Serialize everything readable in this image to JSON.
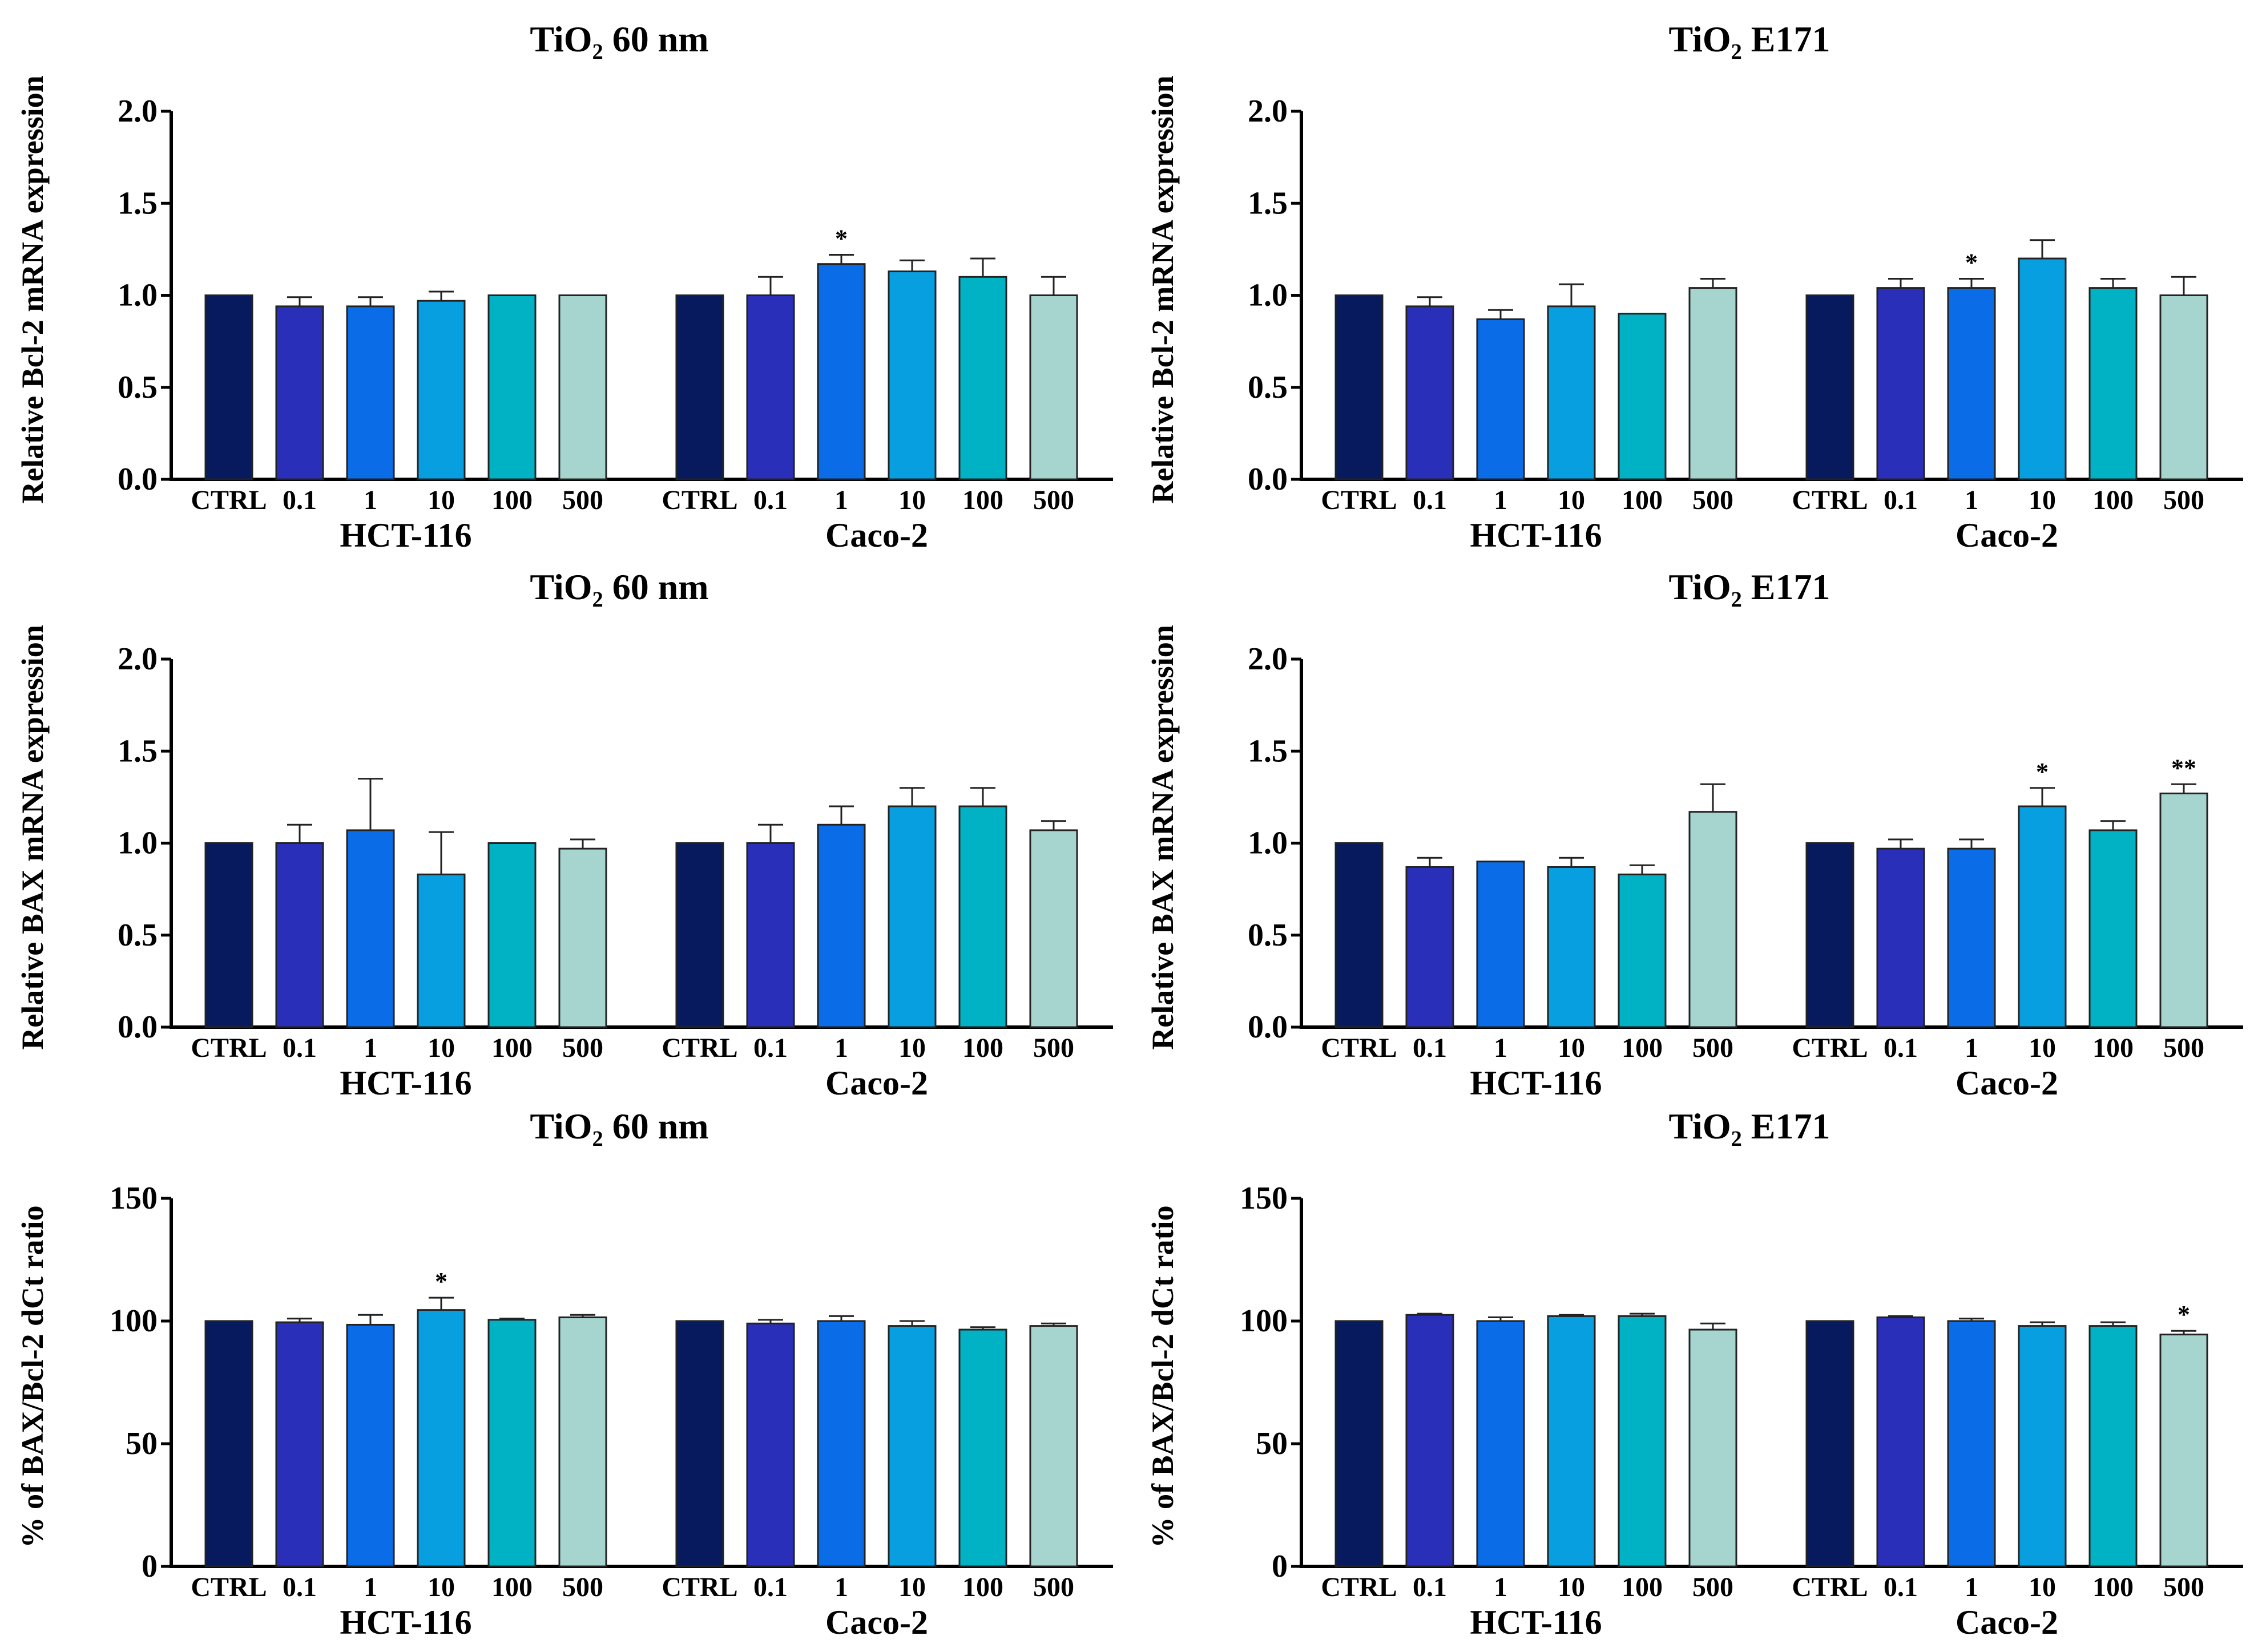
{
  "categories": [
    "CTRL",
    "0.1",
    "1",
    "10",
    "100",
    "500"
  ],
  "groups": [
    "HCT-116",
    "Caco-2"
  ],
  "colors": [
    "#081a5e",
    "#2a2fba",
    "#0b6ce8",
    "#089fe0",
    "#00b2c4",
    "#a6d5d0"
  ],
  "chart_data": [
    {
      "type": "bar",
      "title": "TiO₂ 60 nm",
      "ylabel": "Relative Bcl-2 mRNA expression",
      "ylim": [
        0,
        2.0
      ],
      "yticks": [
        "0.0",
        "0.5",
        "1.0",
        "1.5",
        "2.0"
      ],
      "series": [
        {
          "name": "HCT-116",
          "values": [
            1.0,
            0.94,
            0.94,
            0.97,
            1.0,
            1.0
          ],
          "errors": [
            0,
            0.05,
            0.05,
            0.05,
            0,
            0
          ],
          "sig": [
            "",
            "",
            "",
            "",
            "",
            ""
          ]
        },
        {
          "name": "Caco-2",
          "values": [
            1.0,
            1.0,
            1.17,
            1.13,
            1.1,
            1.0
          ],
          "errors": [
            0,
            0.1,
            0.05,
            0.06,
            0.1,
            0.1
          ],
          "sig": [
            "",
            "",
            "*",
            "",
            "",
            ""
          ]
        }
      ]
    },
    {
      "type": "bar",
      "title": "TiO₂ E171",
      "ylabel": "Relative Bcl-2 mRNA expression",
      "ylim": [
        0,
        2.0
      ],
      "yticks": [
        "0.0",
        "0.5",
        "1.0",
        "1.5",
        "2.0"
      ],
      "series": [
        {
          "name": "HCT-116",
          "values": [
            1.0,
            0.94,
            0.87,
            0.94,
            0.9,
            1.04
          ],
          "errors": [
            0,
            0.05,
            0.05,
            0.12,
            0,
            0.05
          ],
          "sig": [
            "",
            "",
            "",
            "",
            "",
            ""
          ]
        },
        {
          "name": "Caco-2",
          "values": [
            1.0,
            1.04,
            1.04,
            1.2,
            1.04,
            1.0
          ],
          "errors": [
            0,
            0.05,
            0.05,
            0.1,
            0.05,
            0.1
          ],
          "sig": [
            "",
            "",
            "*",
            "",
            "",
            ""
          ]
        }
      ]
    },
    {
      "type": "bar",
      "title": "TiO₂ 60 nm",
      "ylabel": "Relative BAX mRNA expression",
      "ylim": [
        0,
        2.0
      ],
      "yticks": [
        "0.0",
        "0.5",
        "1.0",
        "1.5",
        "2.0"
      ],
      "series": [
        {
          "name": "HCT-116",
          "values": [
            1.0,
            1.0,
            1.07,
            0.83,
            1.0,
            0.97
          ],
          "errors": [
            0,
            0.1,
            0.28,
            0.23,
            0,
            0.05
          ],
          "sig": [
            "",
            "",
            "",
            "",
            "",
            ""
          ]
        },
        {
          "name": "Caco-2",
          "values": [
            1.0,
            1.0,
            1.1,
            1.2,
            1.2,
            1.07
          ],
          "errors": [
            0,
            0.1,
            0.1,
            0.1,
            0.1,
            0.05
          ],
          "sig": [
            "",
            "",
            "",
            "",
            "",
            ""
          ]
        }
      ]
    },
    {
      "type": "bar",
      "title": "TiO₂ E171",
      "ylabel": "Relative BAX mRNA expression",
      "ylim": [
        0,
        2.0
      ],
      "yticks": [
        "0.0",
        "0.5",
        "1.0",
        "1.5",
        "2.0"
      ],
      "series": [
        {
          "name": "HCT-116",
          "values": [
            1.0,
            0.87,
            0.9,
            0.87,
            0.83,
            1.17
          ],
          "errors": [
            0,
            0.05,
            0,
            0.05,
            0.05,
            0.15
          ],
          "sig": [
            "",
            "",
            "",
            "",
            "",
            ""
          ]
        },
        {
          "name": "Caco-2",
          "values": [
            1.0,
            0.97,
            0.97,
            1.2,
            1.07,
            1.27
          ],
          "errors": [
            0,
            0.05,
            0.05,
            0.1,
            0.05,
            0.05
          ],
          "sig": [
            "",
            "",
            "",
            "*",
            "",
            "**"
          ]
        }
      ]
    },
    {
      "type": "bar",
      "title": "TiO₂ 60 nm",
      "ylabel": "% of BAX/Bcl-2 dCt ratio",
      "ylim": [
        0,
        150
      ],
      "yticks": [
        "0",
        "50",
        "100",
        "150"
      ],
      "series": [
        {
          "name": "HCT-116",
          "values": [
            100,
            99.5,
            98.5,
            104.5,
            100.5,
            101.5
          ],
          "errors": [
            0,
            1.5,
            4,
            5,
            0.5,
            1
          ],
          "sig": [
            "",
            "",
            "",
            "*",
            "",
            ""
          ]
        },
        {
          "name": "Caco-2",
          "values": [
            100,
            99,
            100,
            98,
            96.5,
            98
          ],
          "errors": [
            0,
            1.5,
            2,
            2,
            1,
            1
          ],
          "sig": [
            "",
            "",
            "",
            "",
            "",
            ""
          ]
        }
      ]
    },
    {
      "type": "bar",
      "title": "TiO₂ E171",
      "ylabel": "% of BAX/Bcl-2 dCt ratio",
      "ylim": [
        0,
        150
      ],
      "yticks": [
        "0",
        "50",
        "100",
        "150"
      ],
      "series": [
        {
          "name": "HCT-116",
          "values": [
            100,
            102.5,
            100,
            102,
            102,
            96.5
          ],
          "errors": [
            0,
            0.5,
            1.5,
            0.5,
            1,
            2.5
          ],
          "sig": [
            "",
            "",
            "",
            "",
            "",
            ""
          ]
        },
        {
          "name": "Caco-2",
          "values": [
            100,
            101.5,
            100,
            98,
            98,
            94.5
          ],
          "errors": [
            0,
            0.5,
            1,
            1.5,
            1.5,
            1.5
          ],
          "sig": [
            "",
            "",
            "",
            "",
            "",
            "*"
          ]
        }
      ]
    }
  ]
}
